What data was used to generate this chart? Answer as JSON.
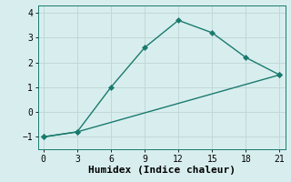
{
  "xlabel": "Humidex (Indice chaleur)",
  "line1_x": [
    0,
    3,
    6,
    9,
    12,
    15,
    18,
    21
  ],
  "line1_y": [
    -1,
    -0.8,
    1.0,
    2.6,
    3.7,
    3.2,
    2.2,
    1.5
  ],
  "line2_x": [
    0,
    3,
    21
  ],
  "line2_y": [
    -1,
    -0.8,
    1.5
  ],
  "line_color": "#1a7a6e",
  "bg_color": "#d8eeee",
  "grid_color": "#c0d8d8",
  "xlim": [
    -0.5,
    21.5
  ],
  "ylim": [
    -1.5,
    4.3
  ],
  "xticks": [
    0,
    3,
    6,
    9,
    12,
    15,
    18,
    21
  ],
  "yticks": [
    -1,
    0,
    1,
    2,
    3,
    4
  ],
  "marker": "D",
  "markersize": 3,
  "linewidth": 1.0,
  "xlabel_fontsize": 8,
  "tick_fontsize": 7
}
